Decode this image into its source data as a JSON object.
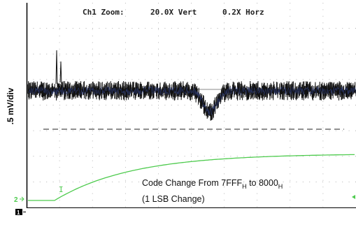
{
  "header": {
    "channel": "Ch1 Zoom:",
    "vertical": "20.0X Vert",
    "horizontal": "0.2X Horz"
  },
  "y_scale_label": ".5 mV/div",
  "annotation": {
    "line1": {
      "text": "Code Change From 7FFF",
      "sub1": "H",
      "mid": " to 8000",
      "sub2": "H"
    },
    "line2": "(1 LSB Change)"
  },
  "markers": {
    "channel2": "2",
    "channel1": "1"
  }
}
